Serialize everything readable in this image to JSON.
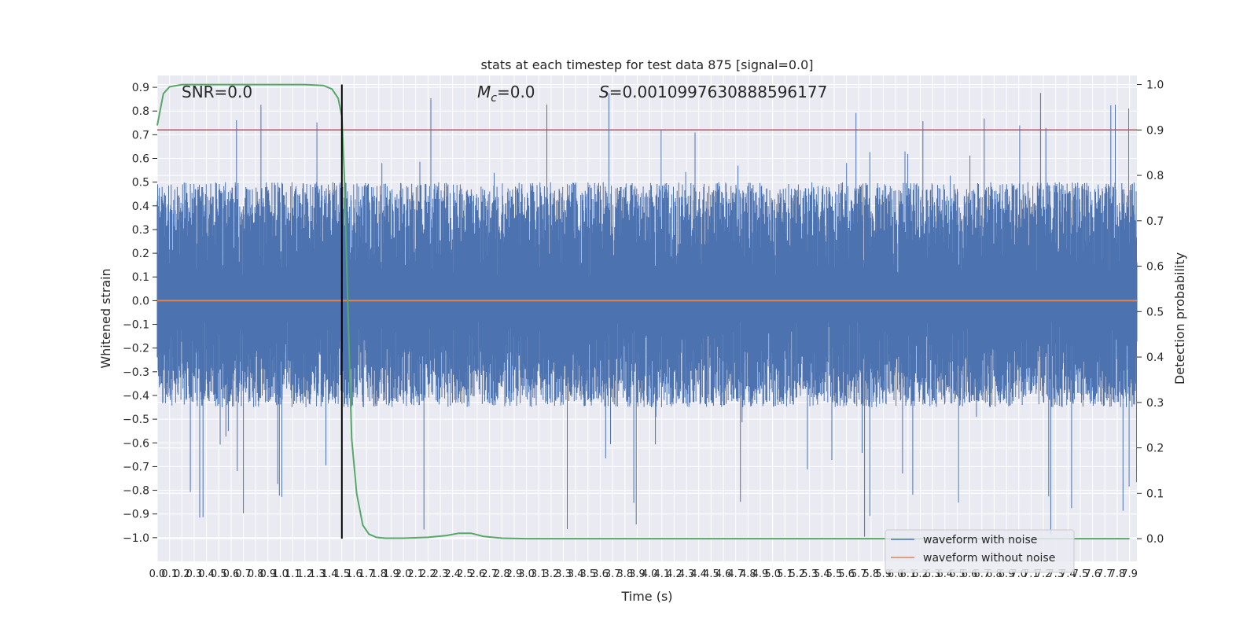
{
  "chart_data": {
    "type": "line",
    "title": "stats at each timestep for test data 875 [signal=0.0]",
    "xlabel": "Time (s)",
    "ylabel": "Whitened strain",
    "y2label": "Detection probability",
    "xlim": [
      0.0,
      7.96
    ],
    "ylim": [
      -1.1,
      0.95
    ],
    "y2lim": [
      -0.05,
      1.02
    ],
    "x_ticks": [
      "0.0",
      "0.1",
      "0.2",
      "0.3",
      "0.4",
      "0.5",
      "0.6",
      "0.7",
      "0.8",
      "0.9",
      "1.0",
      "1.1",
      "1.2",
      "1.3",
      "1.4",
      "1.5",
      "1.6",
      "1.7",
      "1.8",
      "1.9",
      "2.0",
      "2.1",
      "2.2",
      "2.3",
      "2.4",
      "2.5",
      "2.6",
      "2.7",
      "2.8",
      "2.9",
      "3.0",
      "3.1",
      "3.2",
      "3.3",
      "3.4",
      "3.5",
      "3.6",
      "3.7",
      "3.8",
      "3.9",
      "4.0",
      "4.1",
      "4.2",
      "4.3",
      "4.4",
      "4.5",
      "4.6",
      "4.7",
      "4.8",
      "4.9",
      "5.0",
      "5.1",
      "5.2",
      "5.3",
      "5.4",
      "5.5",
      "5.6",
      "5.7",
      "5.8",
      "5.9",
      "6.0",
      "6.1",
      "6.2",
      "6.3",
      "6.4",
      "6.5",
      "6.6",
      "6.7",
      "6.8",
      "6.9",
      "7.0",
      "7.1",
      "7.2",
      "7.3",
      "7.4",
      "7.5",
      "7.6",
      "7.7",
      "7.8",
      "7.9"
    ],
    "y_ticks": [
      "0.9",
      "0.8",
      "0.7",
      "0.6",
      "0.5",
      "0.4",
      "0.3",
      "0.2",
      "0.1",
      "0.0",
      "−0.1",
      "−0.2",
      "−0.3",
      "−0.4",
      "−0.5",
      "−0.6",
      "−0.7",
      "−0.8",
      "−0.9",
      "−1.0"
    ],
    "y2_ticks": [
      "1.0",
      "0.9",
      "0.8",
      "0.7",
      "0.6",
      "0.5",
      "0.4",
      "0.3",
      "0.2",
      "0.1",
      "0.0"
    ],
    "annotations": {
      "snr": "SNR=0.0",
      "mc_symbol": "M",
      "mc_sub": "c",
      "mc_value": "=0.0",
      "s_symbol": "S",
      "s_value": "=0.0010997630888596177"
    },
    "legend": [
      "waveform with noise",
      "waveform without noise"
    ],
    "legend_position": "lower right",
    "grid": true,
    "colors": {
      "noise": "#4c72b0",
      "clean": "#dd8452",
      "probability": "#55a868",
      "threshold": "#c44e52",
      "marker": "#000000",
      "background": "#eaeaf2"
    },
    "threshold_probability": 0.9,
    "marker_time": 1.5,
    "noise_envelope": {
      "upper_typical": 0.5,
      "upper_peak": 0.88,
      "lower_typical": -0.45,
      "lower_peak": -1.0
    },
    "clean_waveform": {
      "x": [
        0.0,
        7.96
      ],
      "y": [
        0.0,
        0.0
      ]
    },
    "detection_probability": {
      "x": [
        0.0,
        0.05,
        0.1,
        0.2,
        0.4,
        0.8,
        1.2,
        1.35,
        1.42,
        1.47,
        1.5,
        1.52,
        1.55,
        1.58,
        1.62,
        1.67,
        1.72,
        1.78,
        1.85,
        2.0,
        2.2,
        2.35,
        2.45,
        2.55,
        2.65,
        2.8,
        3.0,
        4.0,
        5.0,
        6.0,
        7.0,
        7.9
      ],
      "y": [
        0.91,
        0.98,
        0.995,
        1.0,
        1.0,
        1.0,
        1.0,
        0.998,
        0.99,
        0.97,
        0.93,
        0.8,
        0.5,
        0.22,
        0.1,
        0.03,
        0.01,
        0.003,
        0.001,
        0.001,
        0.003,
        0.007,
        0.012,
        0.012,
        0.005,
        0.001,
        0.0,
        0.0,
        0.0,
        0.0,
        0.0,
        0.0
      ]
    }
  }
}
